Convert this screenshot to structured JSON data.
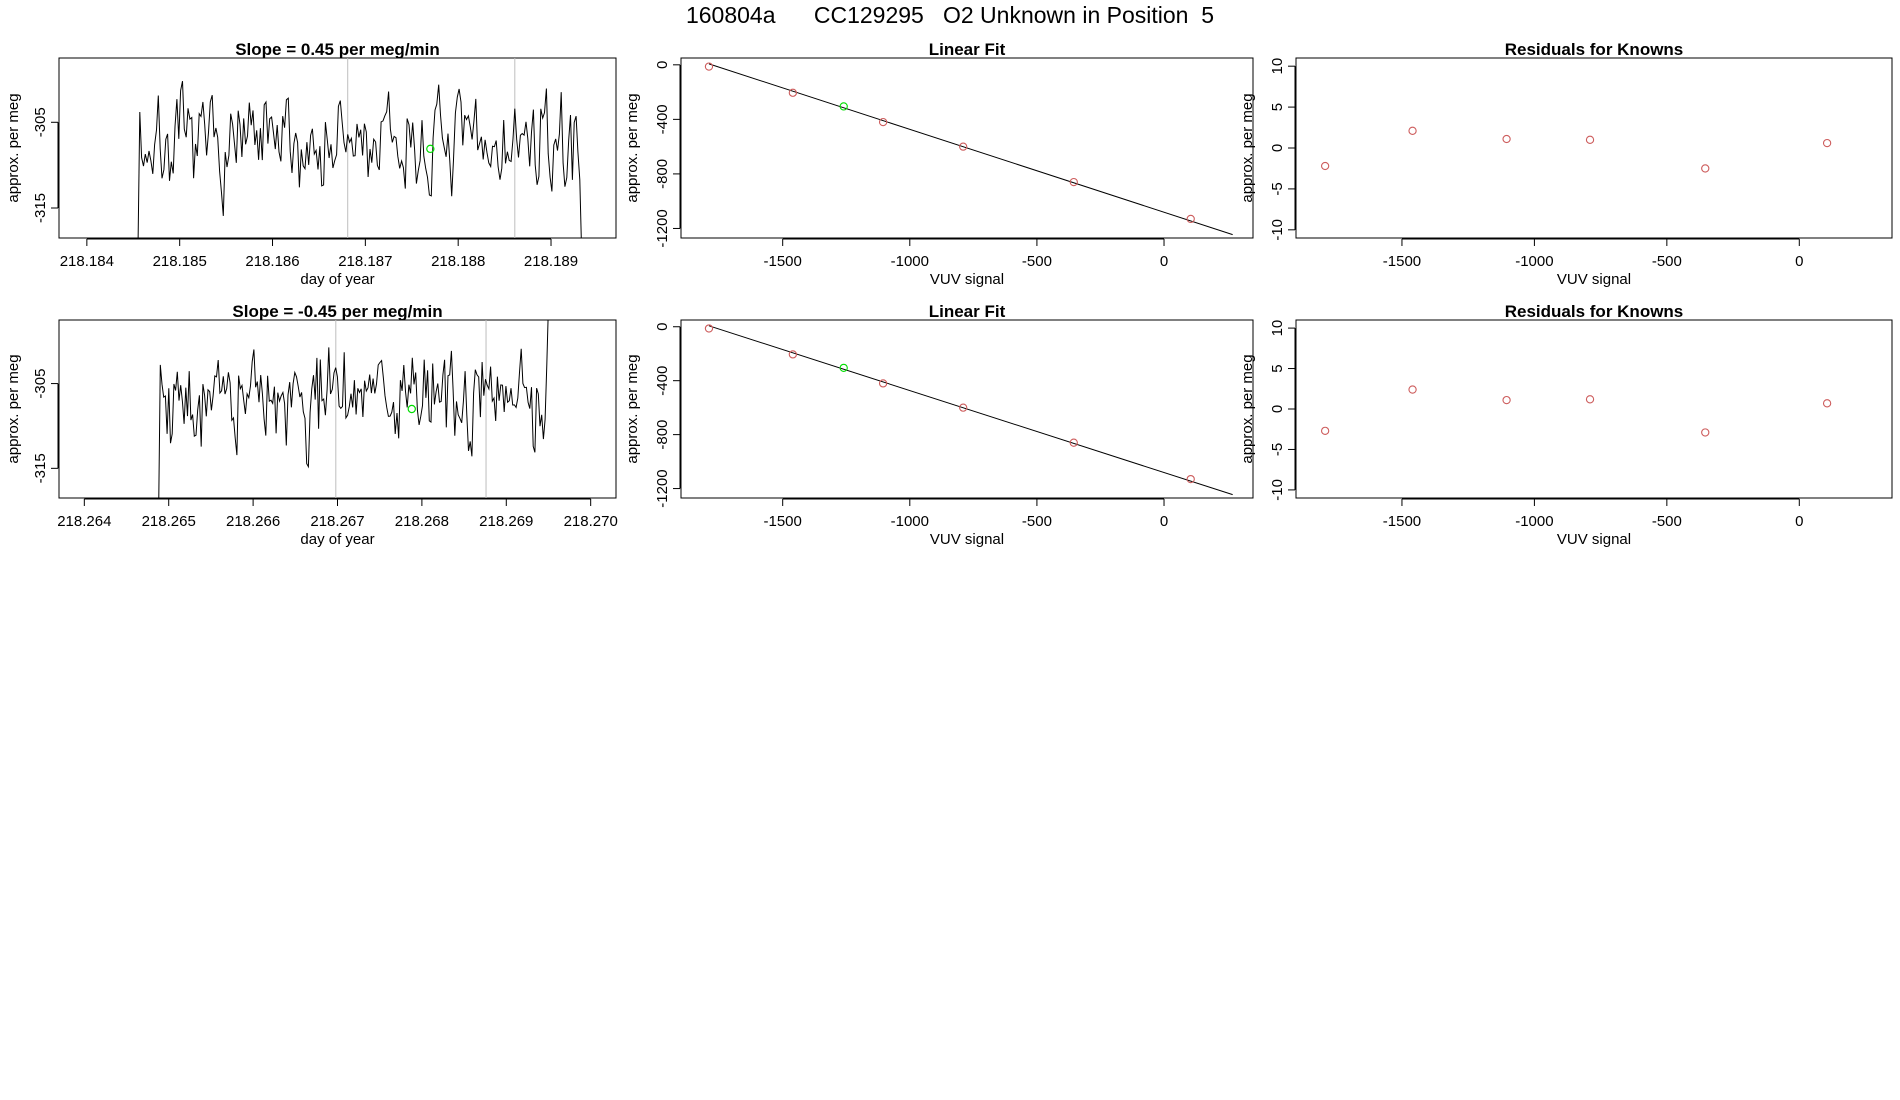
{
  "page": {
    "title": "160804a      CC129295   O2 Unknown in Position  5"
  },
  "colors": {
    "axis": "#000000",
    "trace": "#000000",
    "known_point": "#cd5c5c",
    "unknown_point": "#00dd00",
    "vline": "#bebebe"
  },
  "chart_data": [
    {
      "id": "ts1",
      "type": "line",
      "title": "Slope =  0.45  per meg/min",
      "xlabel": "day of year",
      "ylabel": "approx. per meg",
      "xlim": [
        218.1837,
        218.1897
      ],
      "ylim": [
        -318.5,
        -297.5
      ],
      "xticks": [
        218.184,
        218.185,
        218.186,
        218.187,
        218.188,
        218.189
      ],
      "xtick_labels": [
        "218.184",
        "218.185",
        "218.186",
        "218.187",
        "218.188",
        "218.189"
      ],
      "yticks": [
        -305,
        -315
      ],
      "ytick_labels": [
        "-305",
        "-315"
      ],
      "x_start": 218.18455,
      "x_end": 218.18933,
      "n_points": 240,
      "level": -307.8,
      "seed": 7,
      "vlines": [
        218.18681,
        218.18861
      ],
      "marker": {
        "x": 218.1877,
        "y": -308.1
      }
    },
    {
      "id": "fit1",
      "type": "scatter",
      "title": "Linear Fit",
      "xlabel": "VUV signal",
      "ylabel": "approx. per meg",
      "xlim": [
        -1900,
        350
      ],
      "ylim": [
        -1270,
        50
      ],
      "xticks": [
        -1500,
        -1000,
        -500,
        0
      ],
      "xtick_labels": [
        "-1500",
        "-1000",
        "-500",
        "0"
      ],
      "yticks": [
        0,
        -400,
        -800,
        -1200
      ],
      "ytick_labels": [
        "0",
        "-400",
        "-800",
        "-1200"
      ],
      "fit_line": {
        "x": [
          -1790,
          270
        ],
        "y": [
          7,
          -1245
        ]
      },
      "known_points": {
        "x": [
          -1790,
          -1460,
          -1105,
          -790,
          -355,
          105
        ],
        "y": [
          -13,
          -205,
          -420,
          -600,
          -860,
          -1130
        ]
      },
      "unknown_points": {
        "x": [
          -1260
        ],
        "y": [
          -305
        ]
      }
    },
    {
      "id": "res1",
      "type": "scatter",
      "title": "Residuals for Knowns",
      "xlabel": "VUV signal",
      "ylabel": "approx. per meg",
      "xlim": [
        -1900,
        350
      ],
      "ylim": [
        -11,
        11
      ],
      "xticks": [
        -1500,
        -1000,
        -500,
        0
      ],
      "xtick_labels": [
        "-1500",
        "-1000",
        "-500",
        "0"
      ],
      "yticks": [
        10,
        5,
        0,
        -5,
        -10
      ],
      "ytick_labels": [
        "10",
        "5",
        "0",
        "-5",
        "-10"
      ],
      "known_points": {
        "x": [
          -1790,
          -1460,
          -1105,
          -790,
          -355,
          105
        ],
        "y": [
          -2.2,
          2.1,
          1.1,
          1.0,
          -2.5,
          0.6
        ]
      }
    },
    {
      "id": "ts2",
      "type": "line",
      "title": "Slope =  -0.45  per meg/min",
      "xlabel": "day of year",
      "ylabel": "approx. per meg",
      "xlim": [
        218.2637,
        218.2703
      ],
      "ylim": [
        -318.5,
        -297.5
      ],
      "xticks": [
        218.264,
        218.265,
        218.266,
        218.267,
        218.268,
        218.269,
        218.27
      ],
      "xtick_labels": [
        "218.264",
        "218.265",
        "218.266",
        "218.267",
        "218.268",
        "218.269",
        "218.270"
      ],
      "yticks": [
        -305,
        -315
      ],
      "ytick_labels": [
        "-305",
        "-315"
      ],
      "x_start": 218.26488,
      "x_end": 218.2695,
      "n_points": 230,
      "level": -306.8,
      "seed": 19,
      "vlines": [
        218.26698,
        218.26876
      ],
      "marker": {
        "x": 218.26788,
        "y": -308.0
      }
    },
    {
      "id": "fit2",
      "type": "scatter",
      "title": "Linear Fit",
      "xlabel": "VUV signal",
      "ylabel": "approx. per meg",
      "xlim": [
        -1900,
        350
      ],
      "ylim": [
        -1270,
        50
      ],
      "xticks": [
        -1500,
        -1000,
        -500,
        0
      ],
      "xtick_labels": [
        "-1500",
        "-1000",
        "-500",
        "0"
      ],
      "yticks": [
        0,
        -400,
        -800,
        -1200
      ],
      "ytick_labels": [
        "0",
        "-400",
        "-800",
        "-1200"
      ],
      "fit_line": {
        "x": [
          -1790,
          270
        ],
        "y": [
          7,
          -1245
        ]
      },
      "known_points": {
        "x": [
          -1790,
          -1460,
          -1105,
          -790,
          -355,
          105
        ],
        "y": [
          -13,
          -205,
          -420,
          -600,
          -860,
          -1130
        ]
      },
      "unknown_points": {
        "x": [
          -1260
        ],
        "y": [
          -305
        ]
      }
    },
    {
      "id": "res2",
      "type": "scatter",
      "title": "Residuals for Knowns",
      "xlabel": "VUV signal",
      "ylabel": "approx. per meg",
      "xlim": [
        -1900,
        350
      ],
      "ylim": [
        -11,
        11
      ],
      "xticks": [
        -1500,
        -1000,
        -500,
        0
      ],
      "xtick_labels": [
        "-1500",
        "-1000",
        "-500",
        "0"
      ],
      "yticks": [
        10,
        5,
        0,
        -5,
        -10
      ],
      "ytick_labels": [
        "10",
        "5",
        "0",
        "-5",
        "-10"
      ],
      "known_points": {
        "x": [
          -1790,
          -1460,
          -1105,
          -790,
          -355,
          105
        ],
        "y": [
          -2.7,
          2.4,
          1.1,
          1.2,
          -2.9,
          0.7
        ]
      }
    }
  ]
}
